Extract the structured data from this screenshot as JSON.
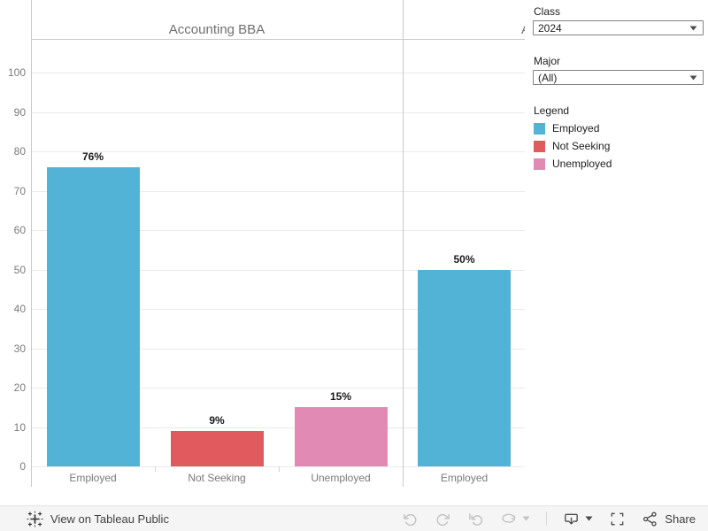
{
  "chart_data": {
    "type": "bar",
    "title": "Accounting BBA",
    "xlabel": "",
    "ylabel": "",
    "ylim": [
      0,
      100
    ],
    "yticks": [
      0,
      10,
      20,
      30,
      40,
      50,
      60,
      70,
      80,
      90,
      100
    ],
    "grid": true,
    "legend_position": "right",
    "panels": [
      {
        "title": "Accounting BBA",
        "categories": [
          "Employed",
          "Not Seeking",
          "Unemployed"
        ],
        "values": [
          76,
          9,
          15
        ],
        "value_labels": [
          "76%",
          "9%",
          "15%"
        ]
      },
      {
        "title_partial": "A",
        "clipped": true,
        "categories": [
          "Employed"
        ],
        "values": [
          50
        ],
        "value_labels": [
          "50%"
        ]
      }
    ],
    "colors": {
      "Employed": "#52B3D6",
      "Not Seeking": "#E05A5E",
      "Unemployed": "#E18BB4"
    }
  },
  "filters": {
    "class": {
      "label": "Class",
      "value": "2024"
    },
    "major": {
      "label": "Major",
      "value": "(All)"
    }
  },
  "legend": {
    "title": "Legend",
    "items": [
      {
        "label": "Employed",
        "color": "#52B3D6"
      },
      {
        "label": "Not Seeking",
        "color": "#E05A5E"
      },
      {
        "label": "Unemployed",
        "color": "#E18BB4"
      }
    ]
  },
  "toolbar": {
    "view_link": "View on Tableau Public",
    "share_label": "Share"
  }
}
